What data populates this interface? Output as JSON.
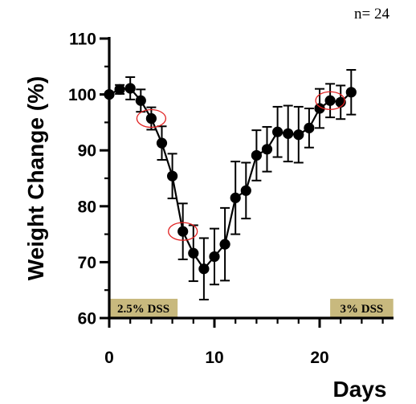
{
  "note": "n= 24",
  "chart_data": {
    "type": "line",
    "xlabel": "Days",
    "ylabel": "Weight Change (%)",
    "xlim": [
      0,
      27
    ],
    "ylim": [
      60,
      110
    ],
    "xticks": [
      "0",
      "10",
      "20"
    ],
    "yticks": [
      "60",
      "70",
      "80",
      "90",
      "100",
      "110"
    ],
    "grid": false,
    "series": [
      {
        "x": [
          0,
          1,
          2,
          3,
          4,
          5,
          6,
          7,
          8,
          9,
          10,
          11,
          12,
          13,
          14,
          15,
          16,
          17,
          18,
          19,
          20,
          21,
          22,
          23
        ],
        "y": [
          100,
          100.9,
          101.1,
          98.9,
          95.7,
          91.3,
          85.4,
          75.5,
          71.6,
          68.8,
          71.0,
          73.2,
          81.5,
          82.8,
          89.1,
          90.2,
          93.3,
          93.0,
          92.8,
          94.0,
          97.5,
          98.9,
          98.6,
          100.4
        ],
        "err": [
          0,
          0.8,
          2.0,
          2.0,
          2.0,
          3.0,
          4.0,
          5.0,
          5.0,
          5.5,
          5.0,
          6.5,
          6.5,
          5.0,
          4.5,
          4.0,
          4.5,
          5.0,
          5.0,
          3.5,
          3.5,
          3.0,
          3.0,
          4.0
        ]
      }
    ],
    "highlighted_points": [
      4,
      7,
      21
    ],
    "annotations": [
      {
        "label": "2.5% DSS",
        "x_start": 0,
        "x_end": 6.5
      },
      {
        "label": "3% DSS",
        "x_start": 21,
        "x_end": 27
      }
    ],
    "colors": {
      "points": "#000000",
      "highlight": "#e02020",
      "dss_box": "#c8b97e"
    }
  }
}
